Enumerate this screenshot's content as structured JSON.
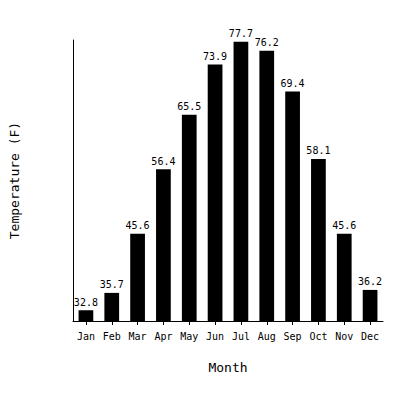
{
  "chart_data": {
    "type": "bar",
    "categories": [
      "Jan",
      "Feb",
      "Mar",
      "Apr",
      "May",
      "Jun",
      "Jul",
      "Aug",
      "Sep",
      "Oct",
      "Nov",
      "Dec"
    ],
    "values": [
      32.8,
      35.7,
      45.6,
      56.4,
      65.5,
      73.9,
      77.7,
      76.2,
      69.4,
      58.1,
      45.6,
      36.2
    ],
    "color": "#000000",
    "xlabel": "Month",
    "ylabel": "Temperature (F)",
    "ylim": [
      31,
      78
    ],
    "data_labels": true,
    "tick_labels": "x",
    "grid": false
  }
}
